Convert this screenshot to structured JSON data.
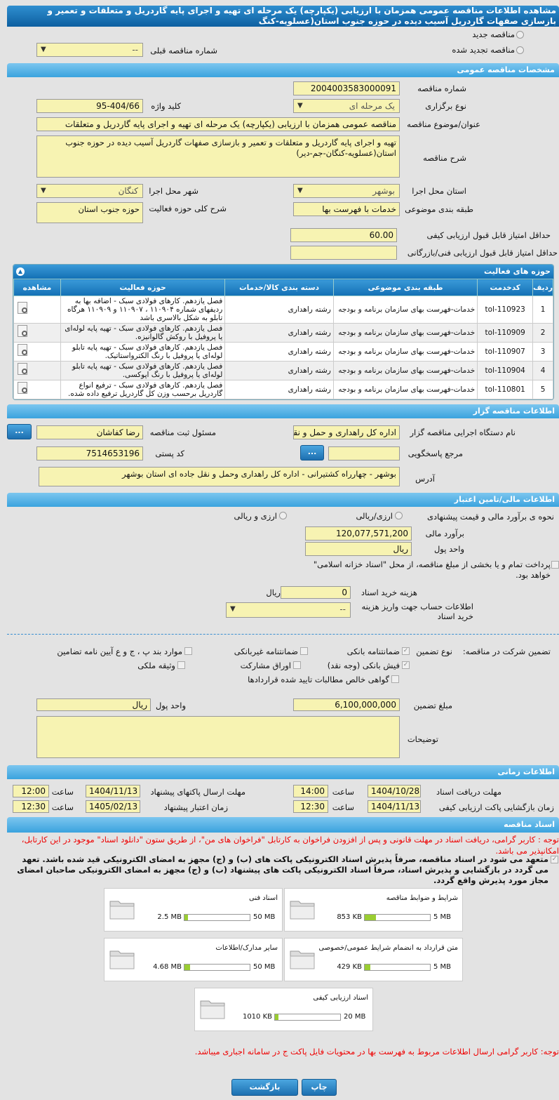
{
  "title": "مشاهده اطلاعات مناقصه عمومی همزمان با ارزیابی (یکپارچه) یک مرحله ای تهیه و اجرای پایه گاردریل و متعلقات و تعمیر و بازسازی صفهات گاردریل آسیب دیده در حوزه جنوب استان(عسلویه-کنگ",
  "top": {
    "new_label": "مناقصه جدید",
    "renewed_label": "مناقصه تجدید شده",
    "prev_label": "شماره مناقصه قبلی",
    "prev_value": "--"
  },
  "general": {
    "header": "مشخصات مناقصه عمومی",
    "number_label": "شماره مناقصه",
    "number": "2004003583000091",
    "type_label": "نوع برگزاری",
    "type": "یک مرحله ای",
    "keyword_label": "کلید واژه",
    "keyword": "95-404/66",
    "subject_label": "عنوان/موضوع مناقصه",
    "subject": "مناقصه عمومی همزمان با ارزیابی (یکپارچه) یک مرحله ای تهیه و اجرای پایه گاردریل و متعلقات",
    "desc_label": "شرح مناقصه",
    "desc": "تهیه و اجرای پایه گاردریل و متعلقات و تعمیر و بازسازی صفهات گاردریل آسیب دیده در حوزه جنوب استان(عسلویه-کنگان-جم-دیر)",
    "province_label": "استان محل اجرا",
    "province": "بوشهر",
    "city_label": "شهر محل اجرا",
    "city": "کنگان",
    "category_label": "طبقه بندی موضوعی",
    "category": "خدمات با فهرست بها",
    "area_label": "شرح کلی حوزه فعالیت",
    "area": "حوزه جنوب استان",
    "min_quality_label": "حداقل امتیاز قابل قبول ارزیابی کیفی",
    "min_quality": "60.00",
    "min_tech_label": "حداقل امتیاز قابل قبول ارزیابی فنی/بازرگانی",
    "min_tech": ""
  },
  "activities": {
    "header": "حوزه های فعالیت",
    "columns": [
      "ردیف",
      "کدخدمت",
      "طبقه بندی موضوعی",
      "دسته بندی کالا/خدمات",
      "حوزه فعالیت",
      "مشاهده"
    ],
    "rows": [
      [
        "1",
        "tol-110923",
        "خدمات-فهرست بهای سازمان برنامه و بودجه",
        "رشته راهداری",
        "فصل یازدهم. کارهای فولادی سبک - اضافه بها به ردیفهای شماره ۱۱۰۹۰۴ ، ۱۱۰۹۰۷ و ۱۱۰۹۰۹ هرگاه تابلو به شکل بالاسری باشد"
      ],
      [
        "2",
        "tol-110909",
        "خدمات-فهرست بهای سازمان برنامه و بودجه",
        "رشته راهداری",
        "فصل یازدهم. کارهای فولادی سبک - تهیه پایه لوله‌ای یا پروفیل با روکش گالوانیزه."
      ],
      [
        "3",
        "tol-110907",
        "خدمات-فهرست بهای سازمان برنامه و بودجه",
        "رشته راهداری",
        "فصل یازدهم. کارهای فولادی سبک - تهیه پایه تابلو لوله‌ای یا پروفیل با رنگ الکترواستاتیک."
      ],
      [
        "4",
        "tol-110904",
        "خدمات-فهرست بهای سازمان برنامه و بودجه",
        "رشته راهداری",
        "فصل یازدهم. کارهای فولادی سبک - تهیه پایه تابلو لوله‌ای یا پروفیل با رنگ اپوکسی."
      ],
      [
        "5",
        "tol-110801",
        "خدمات-فهرست بهای سازمان برنامه و بودجه",
        "رشته راهداری",
        "فصل یازدهم. کارهای فولادی سبک - ترفیع انواع گاردریل برحسب وزن کل گاردریل ترفیع داده شده."
      ]
    ]
  },
  "organizer": {
    "header": "اطلاعات مناقصه گزار",
    "org_label": "نام دستگاه اجرایی مناقصه گزار",
    "org": "اداره کل راهداری و حمل و نقل",
    "resp_label": "مسئول ثبت مناقصه",
    "resp": "رضا کفاشان",
    "dots": "...",
    "ref_label": "مرجع پاسخگویی",
    "ref": "",
    "postal_label": "کد پستی",
    "postal": "7514653196",
    "address_label": "آدرس",
    "address": "بوشهر - چهارراه کشتیرانی - اداره کل راهداری وحمل و نقل جاده ای استان بوشهر"
  },
  "finance": {
    "header": "اطلاعات مالی/تامین اعتبار",
    "method_label": "نحوه ی برآورد مالی و قیمت پیشنهادی",
    "opt1": "ارزی/ریالی",
    "opt2": "ارزی و ریالی",
    "estimate_label": "برآورد مالی",
    "estimate": "120,077,571,200",
    "currency_label": "واحد پول",
    "currency": "ریال",
    "treasury": "پرداخت تمام و یا بخشی از مبلغ مناقصه، از محل \"اسناد خزانه اسلامی\" خواهد بود.",
    "doc_cost_label": "هزینه خرید اسناد",
    "doc_cost": "0",
    "doc_cost_unit": "ریال",
    "account_label": "اطلاعات حساب جهت واریز هزینه خرید اسناد",
    "account": "--"
  },
  "guarantee": {
    "label": "تضمین شرکت در مناقصه:",
    "type_label": "نوع تضمین",
    "options": [
      {
        "label": "ضمانتنامه بانکی",
        "checked": true
      },
      {
        "label": "ضمانتنامه غیربانکی",
        "checked": false
      },
      {
        "label": "موارد بند پ ، ج و ع آیین نامه تضامین",
        "checked": false
      },
      {
        "label": "فیش بانکی (وجه نقد)",
        "checked": true
      },
      {
        "label": "اوراق مشارکت",
        "checked": false
      },
      {
        "label": "وثیقه ملکی",
        "checked": false
      },
      {
        "label": "گواهی خالص مطالبات تایید شده قراردادها",
        "checked": false
      }
    ],
    "amount_label": "مبلغ تضمین",
    "amount": "6,100,000,000",
    "currency_label": "واحد پول",
    "currency": "ریال",
    "notes_label": "توضیحات",
    "notes": ""
  },
  "timing": {
    "header": "اطلاعات زمانی",
    "hour": "ساعت",
    "receive_label": "مهلت دریافت اسناد",
    "receive_date": "1404/10/28",
    "receive_time": "14:00",
    "submit_label": "مهلت ارسال پاکتهای پیشنهاد",
    "submit_date": "1404/11/13",
    "submit_time": "12:00",
    "open_label": "زمان بازگشایی پاکت ارزیابی کیفی",
    "open_date": "1404/11/13",
    "open_time": "12:30",
    "valid_label": "زمان اعتبار پیشنهاد",
    "valid_date": "1405/02/13",
    "valid_time": "12:30"
  },
  "docs": {
    "header": "اسناد مناقصه",
    "note": "توجه : کاربر گرامی، دریافت اسناد در مهلت قانونی و پس از افزودن فراخوان به کارتابل \"فراخوان های من\"، از طریق ستون \"دانلود اسناد\" موجود در این کارتابل، امکانپذیر می باشد.",
    "commit": "متعهد می شود در اسناد مناقصه، صرفاً پذیرش اسناد الکترونیکی پاکت های (ب) و (ج) مجهز به امضای الکترونیکی قید شده باشد. تعهد می گردد در بازگشایی و پذیرش اسناد، صرفاً اسناد الکترونیکی پاکت های پیشنهاد (ب) و (ج) مجهز به امضای الکترونیکی صاحبان امضای مجاز مورد پذیرش واقع گردد.",
    "files": [
      {
        "title": "شرایط و ضوابط مناقصه",
        "size": "853 KB",
        "max": "5 MB",
        "fill": 0.17
      },
      {
        "title": "اسناد فنی",
        "size": "2.5 MB",
        "max": "50 MB",
        "fill": 0.05
      },
      {
        "title": "متن قرارداد به انضمام شرایط عمومی/خصوصی",
        "size": "429 KB",
        "max": "5 MB",
        "fill": 0.09
      },
      {
        "title": "سایر مدارک/اطلاعات",
        "size": "4.68 MB",
        "max": "50 MB",
        "fill": 0.09
      },
      {
        "title": "اسناد ارزیابی کیفی",
        "size": "1010 KB",
        "max": "20 MB",
        "fill": 0.05
      }
    ],
    "bottom_note": "توجه: کاربر گرامی ارسال اطلاعات مربوط به فهرست بها در محتویات فایل پاکت ج در سامانه اجباری میباشد."
  },
  "buttons": {
    "print": "چاپ",
    "back": "بازگشت"
  }
}
